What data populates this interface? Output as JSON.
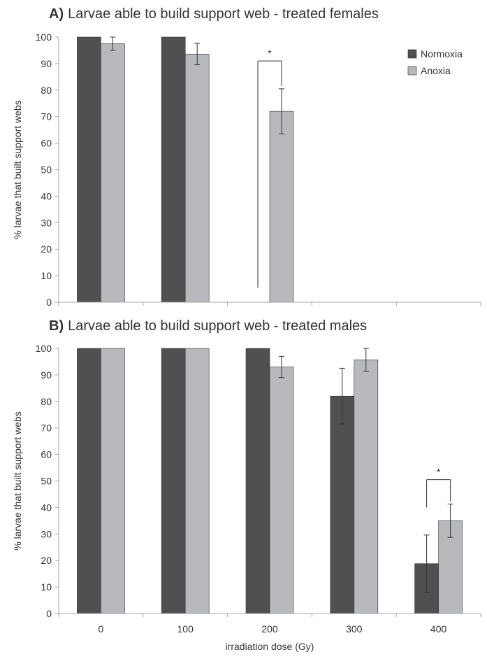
{
  "colors": {
    "normoxia": "#505050",
    "anoxia": "#b7b9bc",
    "axis": "#a6a6a6",
    "text": "#333333"
  },
  "chart_data": [
    {
      "type": "bar",
      "panel": "A)",
      "title": "Larvae able to build support web - treated females",
      "ylabel": "% larvae that built support webs",
      "xlabel": "",
      "ylim": [
        0,
        100
      ],
      "yticks": [
        "0",
        "10",
        "20",
        "30",
        "40",
        "50",
        "60",
        "70",
        "80",
        "90",
        "100"
      ],
      "categories": [
        "0",
        "100",
        "200",
        "300",
        "400"
      ],
      "show_category_labels": false,
      "grid": false,
      "legend": {
        "position": "top-right",
        "entries": [
          "Normoxia",
          "Anoxia"
        ]
      },
      "series": [
        {
          "name": "Normoxia",
          "values": [
            100,
            100,
            null,
            null,
            null
          ],
          "errors": [
            null,
            null,
            null,
            null,
            null
          ]
        },
        {
          "name": "Anoxia",
          "values": [
            97.5,
            93.6,
            72,
            null,
            null
          ],
          "errors": [
            2.5,
            4,
            8.5,
            null,
            null
          ]
        }
      ],
      "significance": [
        {
          "category": "200",
          "label": "*",
          "bracket_low": 5.5,
          "bracket_high": 91
        }
      ]
    },
    {
      "type": "bar",
      "panel": "B)",
      "title": "Larvae able to build support web - treated males",
      "ylabel": "% larvae that built support webs",
      "xlabel": "irradiation dose (Gy)",
      "ylim": [
        0,
        100
      ],
      "yticks": [
        "0",
        "10",
        "20",
        "30",
        "40",
        "50",
        "60",
        "70",
        "80",
        "90",
        "100"
      ],
      "categories": [
        "0",
        "100",
        "200",
        "300",
        "400"
      ],
      "show_category_labels": true,
      "grid": false,
      "series": [
        {
          "name": "Normoxia",
          "values": [
            100,
            100,
            100,
            82,
            18.8
          ],
          "errors": [
            null,
            null,
            null,
            10.5,
            10.8
          ]
        },
        {
          "name": "Anoxia",
          "values": [
            100,
            100,
            93,
            95.7,
            35
          ],
          "errors": [
            null,
            null,
            4,
            4.3,
            6.3
          ]
        }
      ],
      "significance": [
        {
          "category": "400",
          "label": "*",
          "bracket_low": 40,
          "bracket_high": 50.5
        }
      ]
    }
  ]
}
